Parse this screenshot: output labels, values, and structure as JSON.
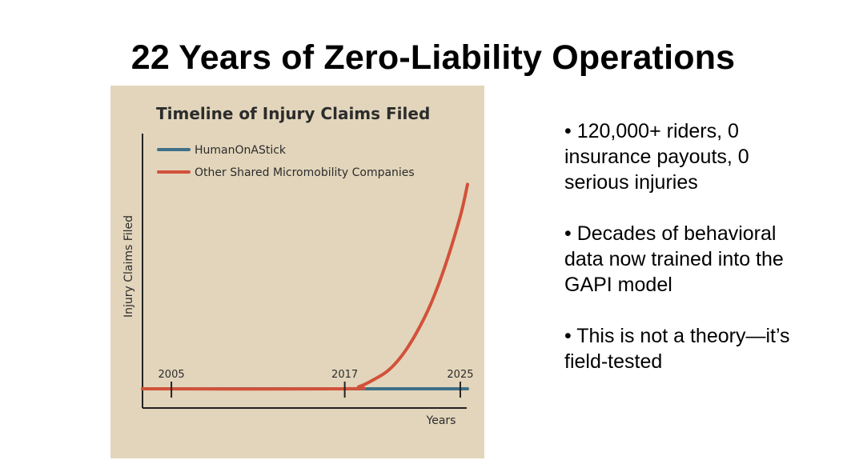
{
  "slide": {
    "title": "22 Years of Zero-Liability Operations",
    "bullets": [
      "• 120,000+ riders, 0 insurance payouts, 0 serious injuries",
      "• Decades of behavioral data now trained into the GAPI model",
      "• This is not a theory—it’s field-tested"
    ]
  },
  "chart_data": {
    "type": "line",
    "title": "Timeline of Injury Claims Filed",
    "xlabel": "Years",
    "ylabel": "Injury Claims Filed",
    "xlim": [
      2003,
      2026
    ],
    "ylim": [
      0,
      100
    ],
    "x_ticks": [
      2005,
      2017,
      2025
    ],
    "grid": false,
    "legend_position": "top-left",
    "series": [
      {
        "name": "HumanOnAStick",
        "color": "#3f7187",
        "x": [
          2003,
          2025.5
        ],
        "y": [
          0,
          0
        ]
      },
      {
        "name": "Other Shared Micromobility Companies",
        "color": "#d2513a",
        "x": [
          2003,
          2017,
          2018,
          2019,
          2020,
          2021,
          2022,
          2023,
          2024,
          2025,
          2025.5
        ],
        "y": [
          0,
          0,
          1,
          4,
          8,
          15,
          25,
          38,
          55,
          76,
          90
        ]
      }
    ],
    "colors": {
      "background": "#e2d5bb",
      "axis": "#222222",
      "text": "#2c2c2c"
    }
  }
}
